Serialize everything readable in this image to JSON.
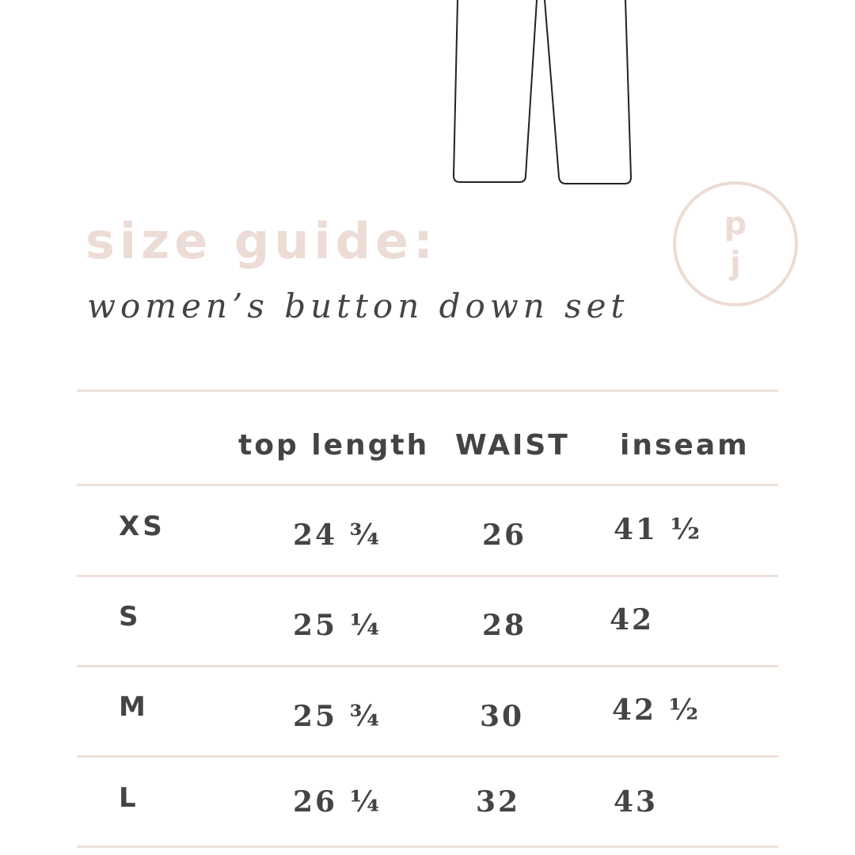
{
  "colors": {
    "accent": "#ecdcd5",
    "text": "#444444",
    "rule": "#efe0d9"
  },
  "illustration": "pants-outline",
  "title": "size guide:",
  "subtitle": "women’s button down set",
  "logo": {
    "top": "p",
    "bottom": "j"
  },
  "table": {
    "headers": [
      "",
      "top length",
      "WAIST",
      "inseam"
    ],
    "rows": [
      {
        "size": "XS",
        "top_length": "24 ¾",
        "waist": "26",
        "inseam": "41 ½"
      },
      {
        "size": "S",
        "top_length": "25 ¼",
        "waist": "28",
        "inseam": "42"
      },
      {
        "size": "M",
        "top_length": "25 ¾",
        "waist": "30",
        "inseam": "42 ½"
      },
      {
        "size": "L",
        "top_length": "26 ¼",
        "waist": "32",
        "inseam": "43"
      }
    ]
  }
}
